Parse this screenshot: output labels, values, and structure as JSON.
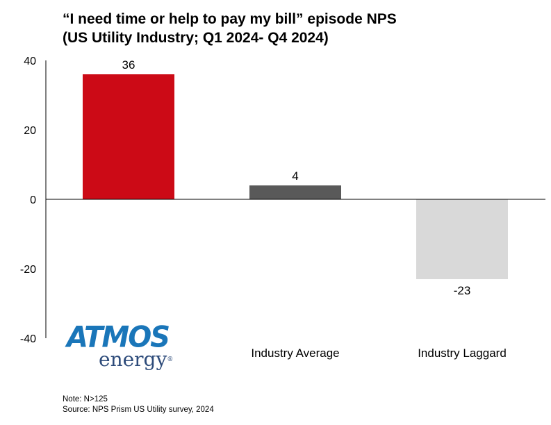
{
  "title": {
    "line1": "“I need time or help to pay my bill” episode NPS",
    "line2": "(US Utility Industry; Q1 2024- Q4 2024)"
  },
  "chart_data": {
    "type": "bar",
    "title": "“I need time or help to pay my bill” episode NPS (US Utility Industry; Q1 2024- Q4 2024)",
    "categories": [
      "Atmos Energy",
      "Industry Average",
      "Industry Laggard"
    ],
    "values": [
      36,
      4,
      -23
    ],
    "value_labels": [
      "36",
      "4",
      "-23"
    ],
    "colors": [
      "#cc0a16",
      "#595959",
      "#d9d9d9"
    ],
    "ylim": [
      -40,
      40
    ],
    "yticks": [
      40,
      20,
      0,
      -20,
      -40
    ],
    "xlabel": "",
    "ylabel": "",
    "grid": false
  },
  "logo": {
    "word1": "ATMOS",
    "word2": "energy",
    "mark": "®"
  },
  "notes": {
    "note": "Note: N>125",
    "source": "Source: NPS Prism US Utility survey, 2024"
  }
}
